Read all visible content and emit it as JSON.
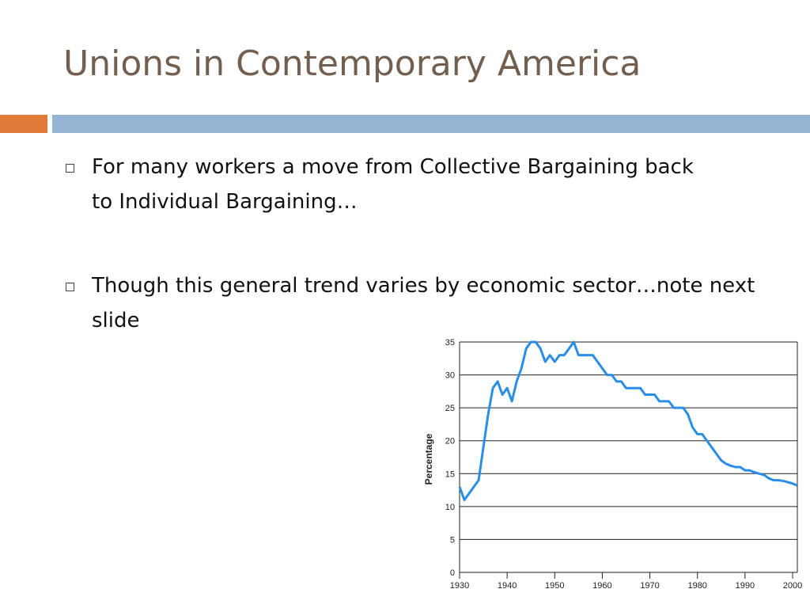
{
  "header": {
    "title": "Unions in Contemporary America"
  },
  "bullets": [
    "For many workers a move from Collective Bargaining back to Individual Bargaining…",
    "Though this general trend varies by economic sector…note next slide"
  ],
  "chart_data": {
    "type": "line",
    "ylabel": "Percentage",
    "x": [
      1930,
      1931,
      1932,
      1933,
      1934,
      1935,
      1936,
      1937,
      1938,
      1939,
      1940,
      1941,
      1942,
      1943,
      1944,
      1945,
      1946,
      1947,
      1948,
      1949,
      1950,
      1951,
      1952,
      1953,
      1954,
      1955,
      1956,
      1957,
      1958,
      1959,
      1960,
      1961,
      1962,
      1963,
      1964,
      1965,
      1966,
      1967,
      1968,
      1969,
      1970,
      1971,
      1972,
      1973,
      1974,
      1975,
      1976,
      1977,
      1978,
      1979,
      1980,
      1981,
      1982,
      1983,
      1984,
      1985,
      1986,
      1987,
      1988,
      1989,
      1990,
      1991,
      1992,
      1993,
      1994,
      1995,
      1996,
      1997,
      1998,
      1999,
      2000,
      2001
    ],
    "series": [
      {
        "color": "#2a8ee8",
        "values": [
          13,
          11,
          12,
          13,
          14,
          19,
          24,
          28,
          29,
          27,
          28,
          26,
          29,
          31,
          34,
          35,
          35,
          34,
          32,
          33,
          32,
          33,
          33,
          34,
          35,
          33,
          33,
          33,
          33,
          32,
          31,
          30,
          30,
          29,
          29,
          28,
          28,
          28,
          28,
          27,
          27,
          27,
          26,
          26,
          26,
          25,
          25,
          25,
          24,
          22,
          21,
          21,
          20,
          19,
          18,
          17,
          16.5,
          16.2,
          16,
          16,
          15.5,
          15.5,
          15.2,
          15,
          14.8,
          14.3,
          14,
          14,
          13.9,
          13.7,
          13.5,
          13.2
        ]
      }
    ],
    "xlim": [
      1930,
      2001
    ],
    "ylim": [
      0,
      35
    ],
    "xticks": [
      1930,
      1940,
      1950,
      1960,
      1970,
      1980,
      1990,
      2000
    ],
    "yticks": [
      0,
      5,
      10,
      15,
      20,
      25,
      30,
      35
    ],
    "grid": true
  }
}
